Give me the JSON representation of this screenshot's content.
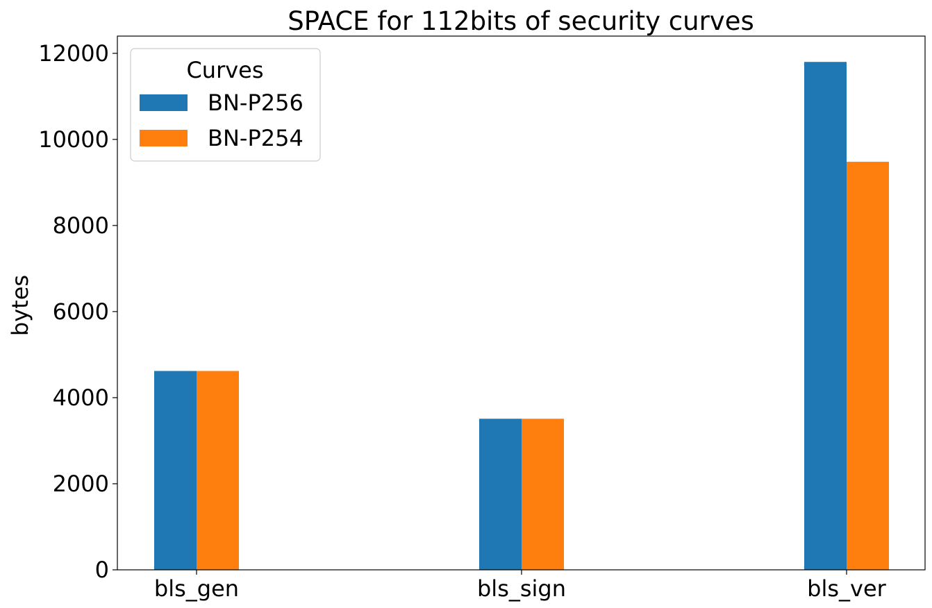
{
  "chart_data": {
    "type": "bar",
    "title": "SPACE for 112bits of security curves",
    "xlabel": "",
    "ylabel": "bytes",
    "categories": [
      "bls_gen",
      "bls_sign",
      "bls_ver"
    ],
    "series": [
      {
        "name": "BN-P256",
        "color": "#1f77b4",
        "values": [
          4620,
          3510,
          11800
        ]
      },
      {
        "name": "BN-P254",
        "color": "#ff7f0e",
        "values": [
          4620,
          3510,
          9480
        ]
      }
    ],
    "ylim": [
      0,
      12400
    ],
    "yticks": [
      0,
      2000,
      4000,
      6000,
      8000,
      10000,
      12000
    ],
    "grid": false,
    "legend": {
      "title": "Curves",
      "placement": "top-left"
    }
  }
}
